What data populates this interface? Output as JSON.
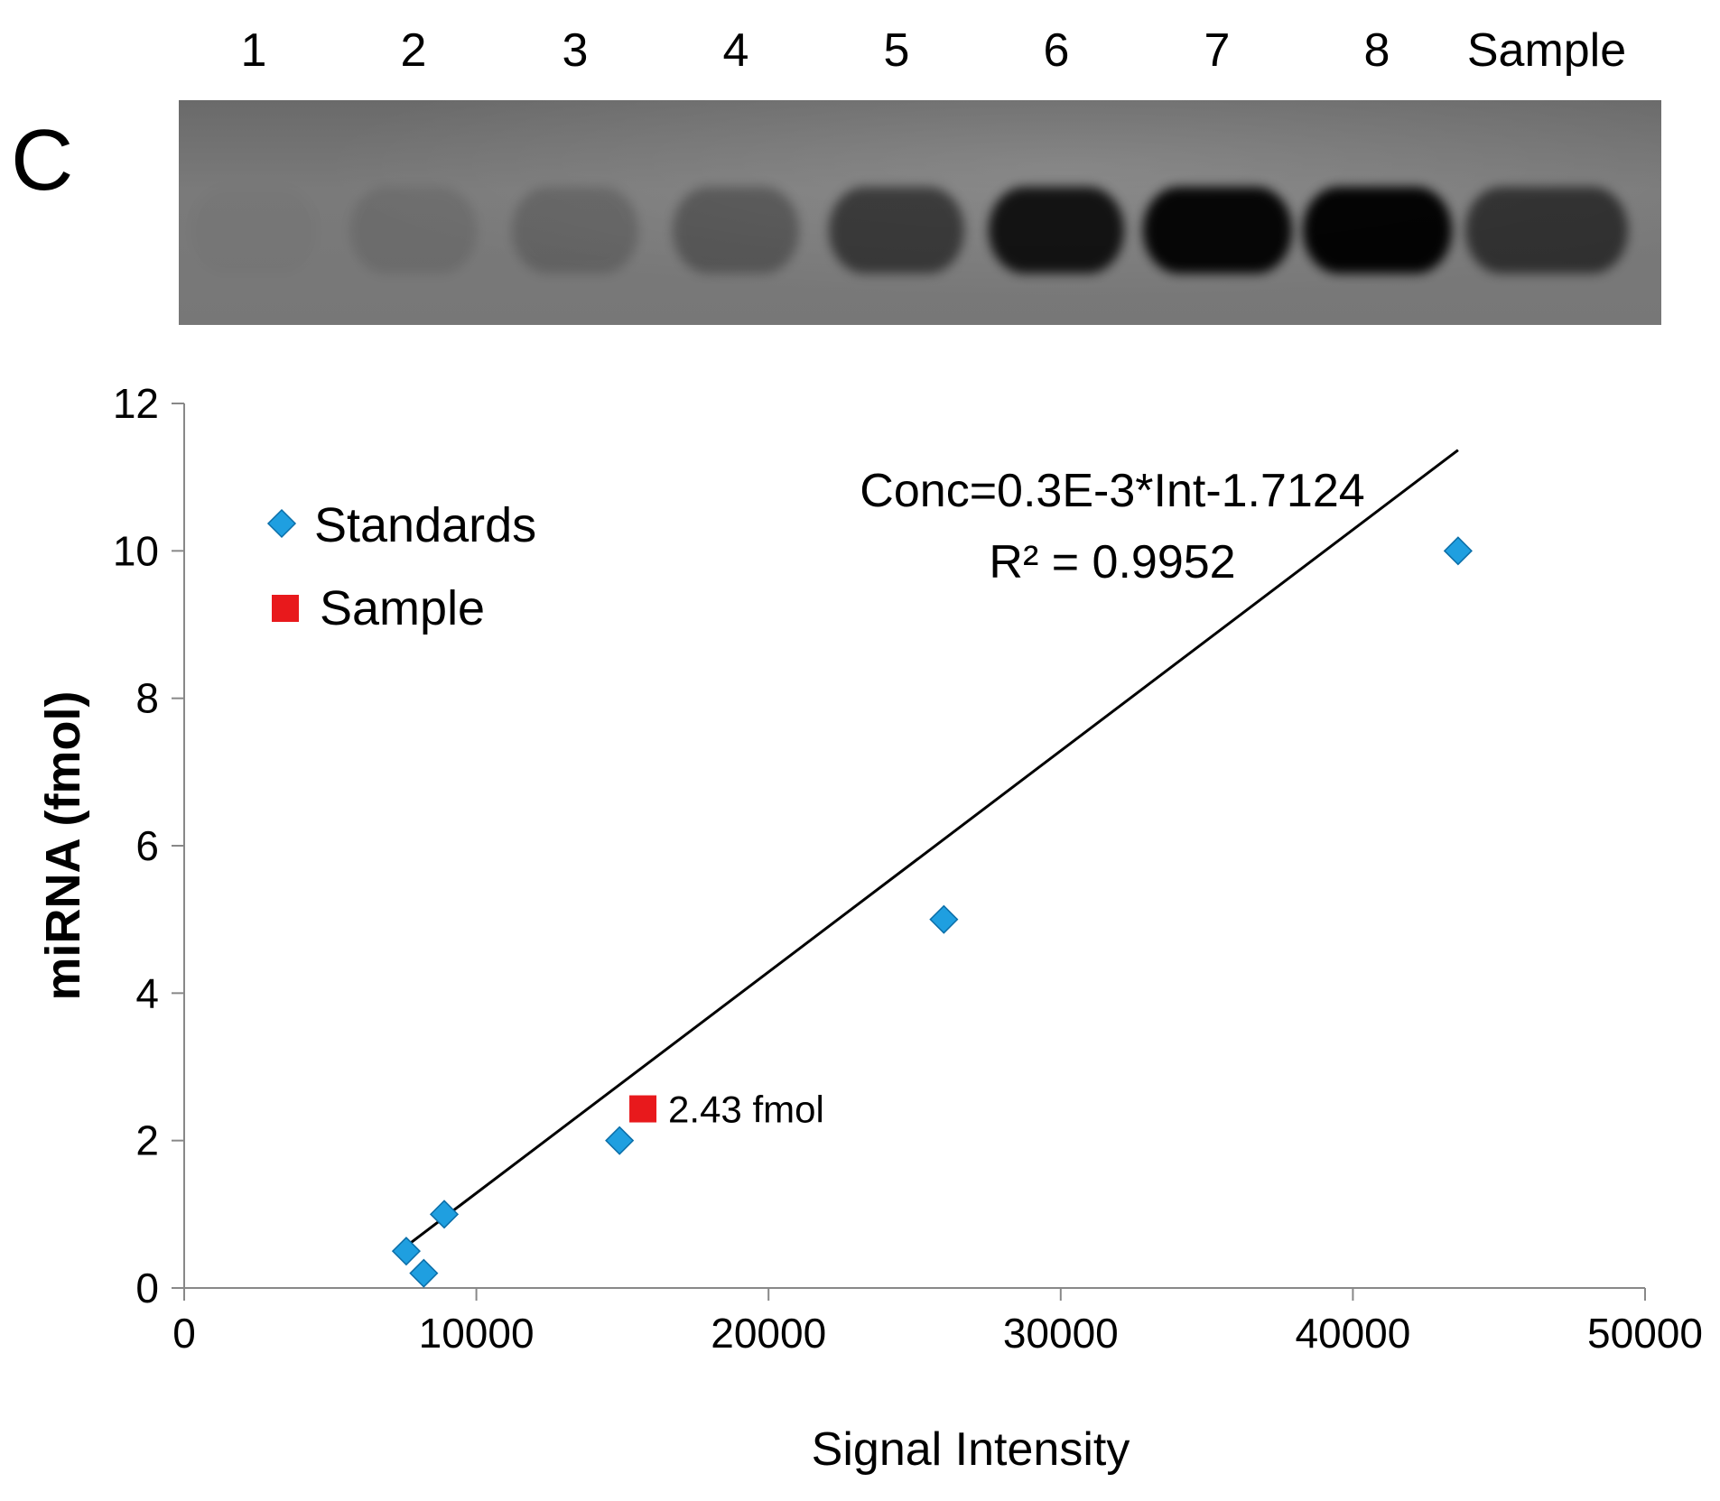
{
  "panel_label": "C",
  "gel": {
    "lanes": [
      {
        "label": "1",
        "intensity": 0.02
      },
      {
        "label": "2",
        "intensity": 0.1
      },
      {
        "label": "3",
        "intensity": 0.18
      },
      {
        "label": "4",
        "intensity": 0.3
      },
      {
        "label": "5",
        "intensity": 0.55
      },
      {
        "label": "6",
        "intensity": 0.85
      },
      {
        "label": "7",
        "intensity": 0.95
      },
      {
        "label": "8",
        "intensity": 0.97
      },
      {
        "label": "Sample",
        "intensity": 0.6
      }
    ]
  },
  "chart_data": {
    "type": "scatter",
    "xlabel": "Signal Intensity",
    "ylabel": "miRNA (fmol)",
    "xlim": [
      0,
      50000
    ],
    "ylim": [
      0,
      12
    ],
    "x_ticks": [
      0,
      10000,
      20000,
      30000,
      40000,
      50000
    ],
    "y_ticks": [
      0,
      2,
      4,
      6,
      8,
      10,
      12
    ],
    "series": [
      {
        "name": "Standards",
        "marker": "diamond",
        "color": "#1f9fe0",
        "points": [
          [
            7600,
            0.5
          ],
          [
            8200,
            0.2
          ],
          [
            8900,
            1.0
          ],
          [
            14900,
            2.0
          ],
          [
            26000,
            5.0
          ],
          [
            43600,
            10.0
          ]
        ]
      },
      {
        "name": "Sample",
        "marker": "square",
        "color": "#e8191c",
        "points": [
          [
            15700,
            2.43
          ]
        ]
      }
    ],
    "trendline": {
      "x": [
        7600,
        43600
      ],
      "slope": 0.0003,
      "intercept": -1.7124,
      "color": "#000000"
    },
    "equation": "Conc=0.3E-3*Int-1.7124",
    "r_squared": "R² = 0.9952",
    "annotation": "2.43 fmol",
    "legend": [
      {
        "label": "Standards",
        "marker": "diamond",
        "color": "#1f9fe0"
      },
      {
        "label": "Sample",
        "marker": "square",
        "color": "#e8191c"
      }
    ],
    "legend_position": "top-left"
  }
}
